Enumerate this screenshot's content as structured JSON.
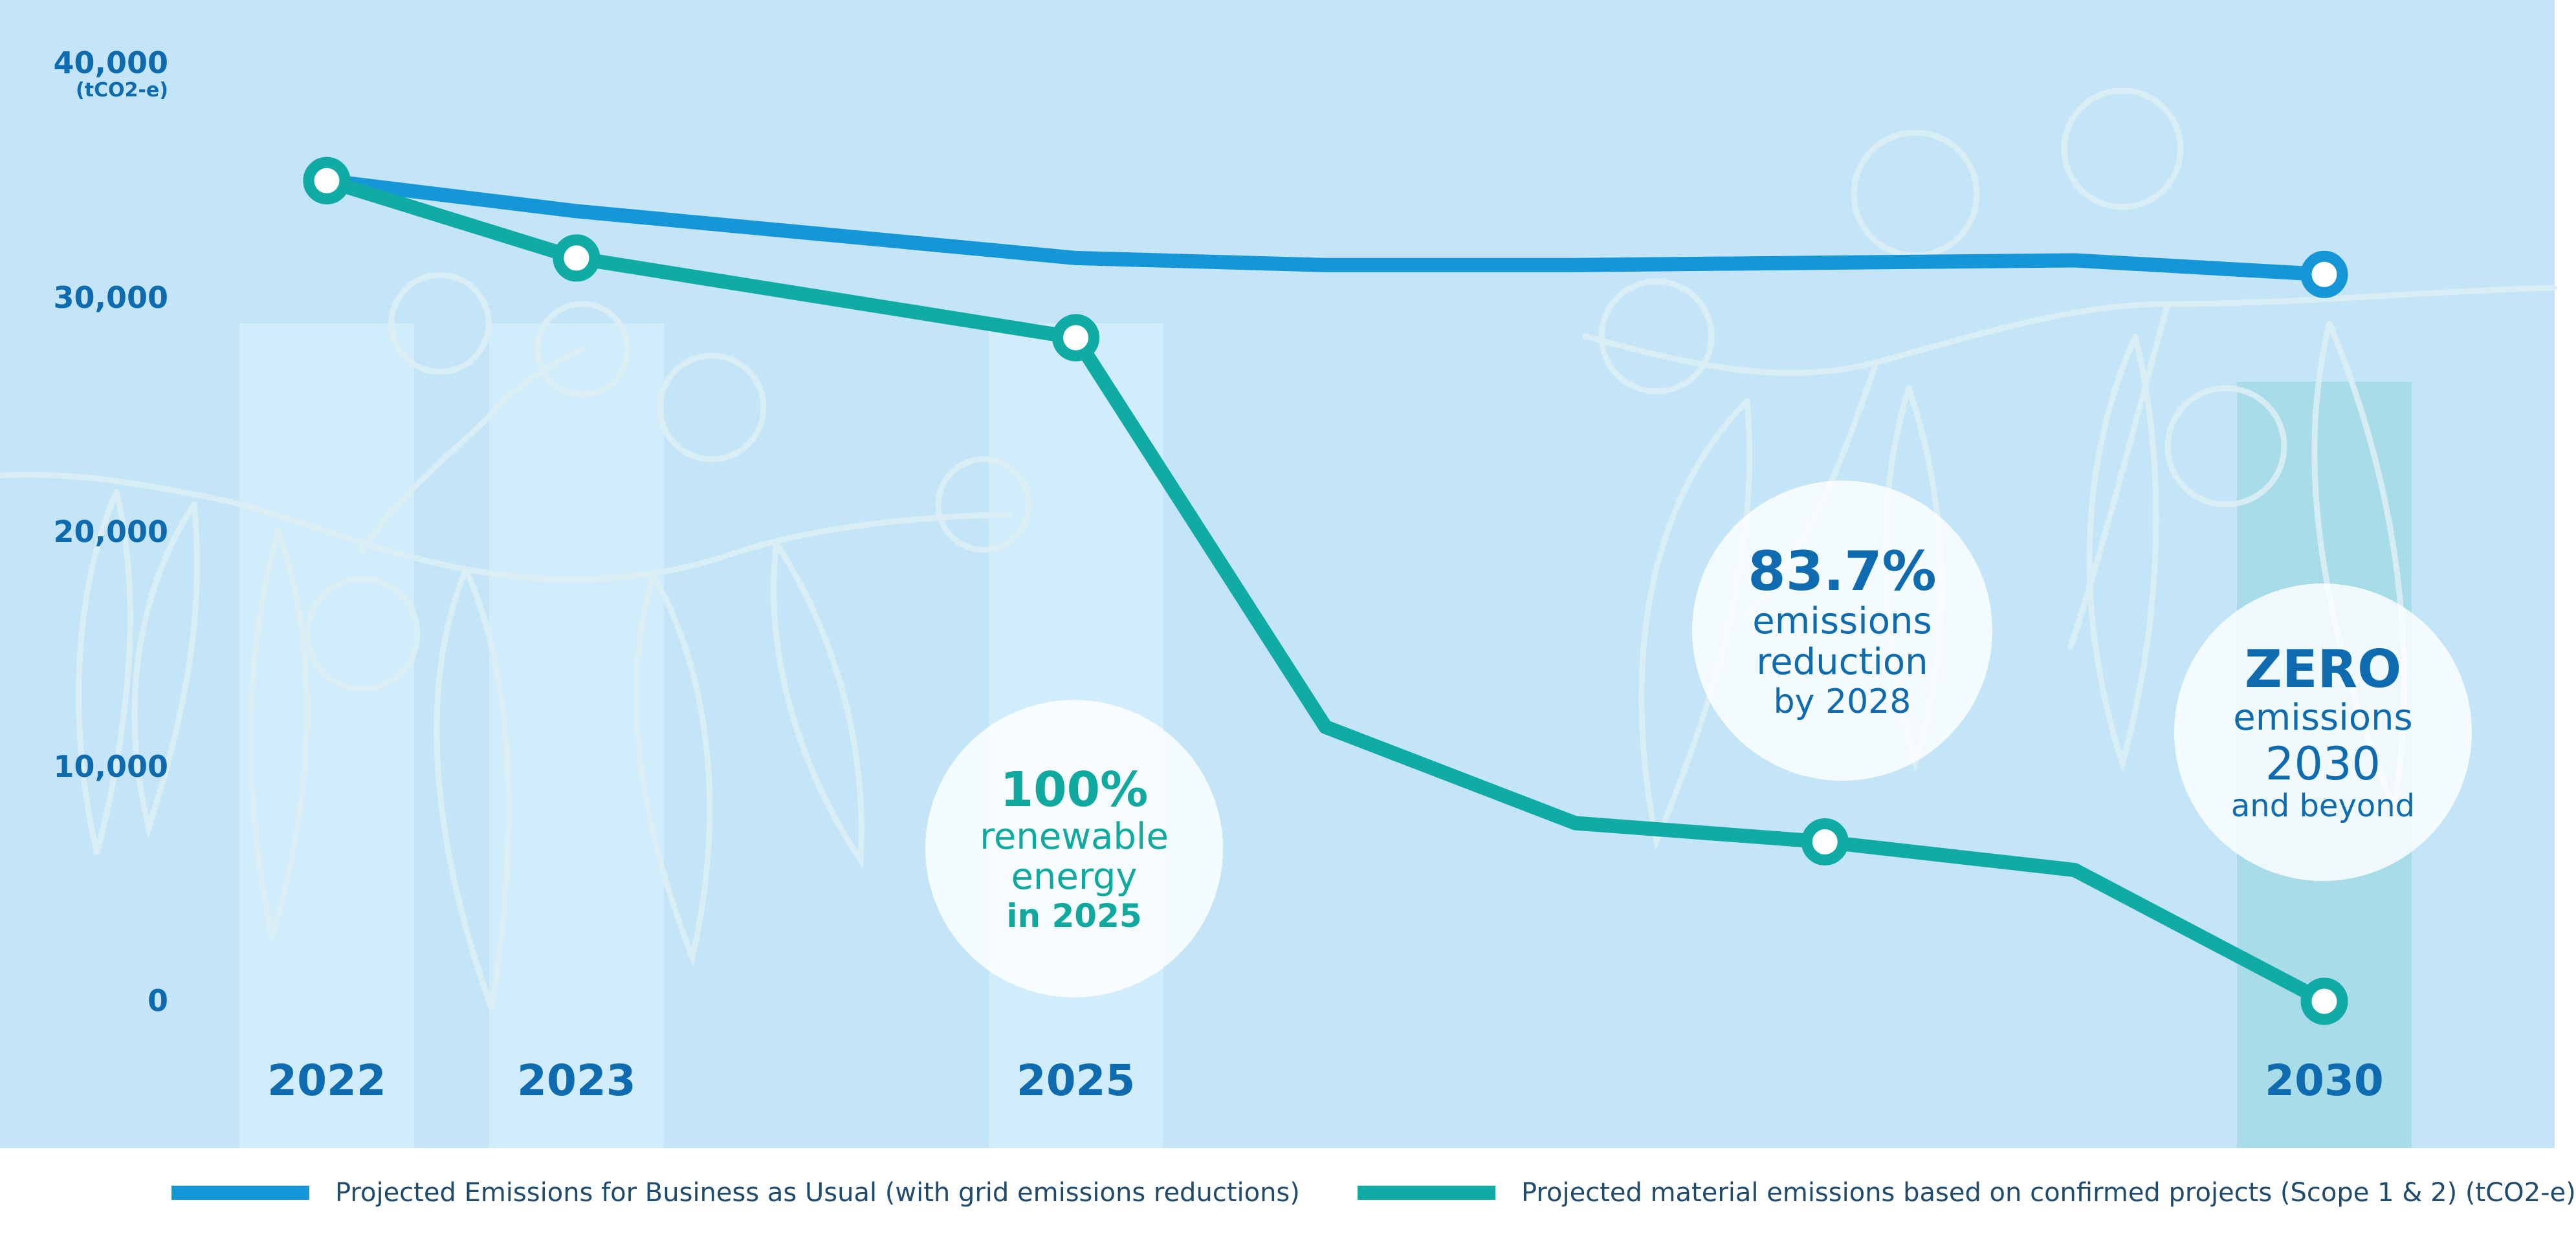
{
  "colors": {
    "background": "#c3e5f7",
    "column_band": "#d4eefa",
    "highlight_band": "#a3dae6",
    "bau_line": "#1596d6",
    "material_line": "#10aba5",
    "axis_text": "#0e6bb0",
    "bubble_teal_text": "#10a9a0",
    "bubble_blue_text": "#0e6bb0"
  },
  "y_axis": {
    "unit": "(tCO2-e)",
    "ticks": [
      {
        "value": 40000,
        "label": "40,000"
      },
      {
        "value": 30000,
        "label": "30,000"
      },
      {
        "value": 20000,
        "label": "20,000"
      },
      {
        "value": 10000,
        "label": "10,000"
      },
      {
        "value": 0,
        "label": "0"
      }
    ]
  },
  "chart_data": {
    "type": "line",
    "x": [
      2022,
      2023,
      2024,
      2025,
      2026,
      2027,
      2028,
      2029,
      2030
    ],
    "x_tick_labels": [
      "2022",
      "2023",
      "2025",
      "2030"
    ],
    "ylim": [
      0,
      40000
    ],
    "xlim": [
      2021.7,
      2030.9
    ],
    "grid": false,
    "legend_position": "bottom",
    "series": [
      {
        "name": "Projected Emissions for Business as Usual (with grid emissions reductions)",
        "values": [
          35000,
          33700,
          32700,
          31700,
          31400,
          31400,
          31500,
          31600,
          31000
        ],
        "markers_at": [
          2022,
          2030
        ]
      },
      {
        "name": "Projected material emissions based on confirmed projects (Scope 1 & 2) (tCO2-e)",
        "values": [
          35000,
          31700,
          30000,
          28300,
          11700,
          7600,
          6800,
          5600,
          0
        ],
        "markers_at": [
          2022,
          2023,
          2025,
          2028,
          2030
        ]
      }
    ]
  },
  "callouts": {
    "renewable": {
      "headline": "100%",
      "line1": "renewable",
      "line2": "energy",
      "line3": "in 2025"
    },
    "reduction": {
      "headline": "83.7%",
      "line1": "emissions",
      "line2": "reduction",
      "line3": "by 2028"
    },
    "zero": {
      "headline": "ZERO",
      "line1": "emissions",
      "line2": "2030",
      "line3": "and beyond"
    }
  },
  "legend": {
    "bau_label": "Projected Emissions for Business as Usual (with grid emissions reductions)",
    "material_label": "Projected material emissions based on confirmed projects (Scope 1 & 2) (tCO2-e)"
  }
}
